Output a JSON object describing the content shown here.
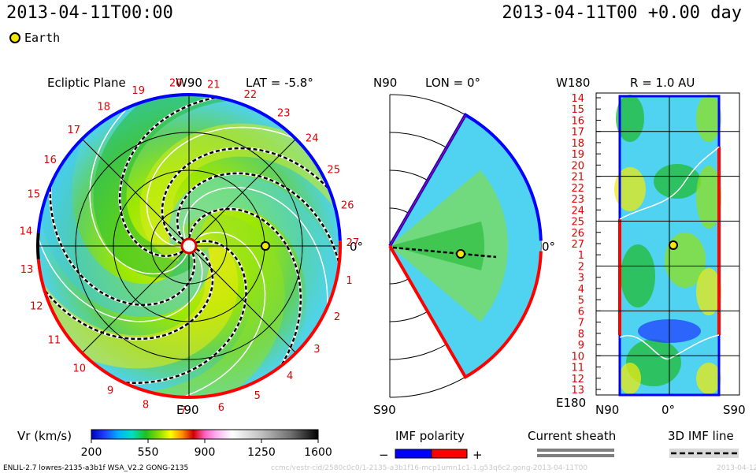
{
  "header": {
    "left_time": "2013-04-11T00:00",
    "right_time": "2013-04-11T00 +0.00 day"
  },
  "legend": {
    "earth_label": "Earth"
  },
  "panels": {
    "ecliptic": {
      "title": "Ecliptic Plane",
      "top_label": "W90",
      "lat_label": "LAT = -5.8°",
      "bottom_label": "E90",
      "right_label": "0°",
      "car_labels": [
        "1",
        "2",
        "3",
        "4",
        "5",
        "6",
        "7",
        "8",
        "9",
        "10",
        "11",
        "12",
        "13",
        "14",
        "15",
        "16",
        "17",
        "18",
        "19",
        "20",
        "21",
        "22",
        "23",
        "24",
        "25",
        "26",
        "27"
      ]
    },
    "meridional": {
      "top_left": "N90",
      "lon_label": "LON = 0°",
      "bottom_left": "S90",
      "right_label": "0°"
    },
    "sphere": {
      "top_left": "W180",
      "r_label": "R = 1.0 AU",
      "bottom_left": "E180",
      "x_left": "N90",
      "x_mid": "0°",
      "x_right": "S90",
      "rows": [
        "14",
        "15",
        "16",
        "17",
        "18",
        "19",
        "20",
        "21",
        "22",
        "23",
        "24",
        "25",
        "26",
        "27",
        "1",
        "2",
        "3",
        "4",
        "5",
        "6",
        "7",
        "8",
        "9",
        "10",
        "11",
        "12",
        "13"
      ]
    }
  },
  "colorbar": {
    "label": "Vr (km/s)",
    "ticks": [
      "200",
      "550",
      "900",
      "1250",
      "1600"
    ],
    "min": 200,
    "max": 1600
  },
  "imf_legend": {
    "label": "IMF polarity",
    "minus": "−",
    "plus": "+"
  },
  "sheath_legend": {
    "label": "Current sheath"
  },
  "line_legend": {
    "label": "3D IMF line"
  },
  "footer": {
    "model": "ENLIL-2.7 lowres-2135-a3b1f WSA_V2.2 GONG-2135",
    "run": "ccmc/vestr-cid/2580c0c0/1-2135-a3b1f16-mcp1umn1c1-1.g53q6c2.gong-2013-04-11T00",
    "date": "2013-04-12"
  },
  "colors": {
    "polarity_negative": "#0000ff",
    "polarity_positive": "#ff0000",
    "earth": "#f2e800",
    "label_red": "#e00000"
  }
}
